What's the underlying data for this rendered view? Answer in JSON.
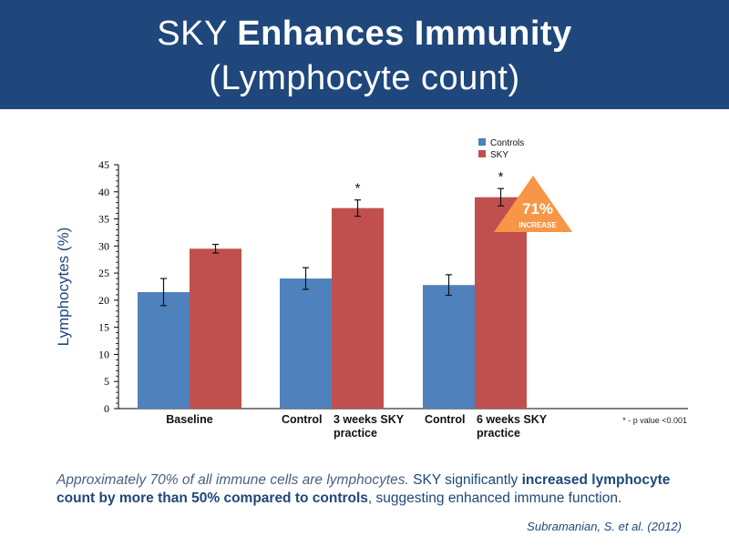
{
  "header": {
    "title_part1": "SKY",
    "title_part2": "Enhances Immunity",
    "title_line2": "(Lymphocyte count)"
  },
  "colors": {
    "banner": "#1f477b",
    "controls": "#4f81bd",
    "sky": "#c0504d",
    "badge": "#f79646"
  },
  "chart_data": {
    "type": "bar",
    "ylabel": "Lymphocytes (%)",
    "ylim": [
      0,
      45
    ],
    "yticks": [
      0,
      5,
      10,
      15,
      20,
      25,
      30,
      35,
      40,
      45
    ],
    "groups": [
      {
        "name": "Baseline",
        "labels": [
          "Baseline"
        ]
      },
      {
        "name": "3 weeks",
        "labels": [
          "Control",
          "3 weeks SKY\npractice"
        ]
      },
      {
        "name": "6 weeks",
        "labels": [
          "Control",
          "6 weeks SKY\npractice"
        ]
      }
    ],
    "series": [
      {
        "name": "Controls",
        "values": [
          21.5,
          24,
          22.8
        ],
        "errors": [
          2.5,
          2,
          1.9
        ]
      },
      {
        "name": "SKY",
        "values": [
          29.5,
          37,
          39
        ],
        "errors": [
          0.8,
          1.5,
          1.6
        ]
      }
    ],
    "significance": [
      "",
      "*",
      "*"
    ],
    "legend_position": "top-right",
    "badge": {
      "value": "71%",
      "text": "INCREASE"
    },
    "note": "* - p value <0.001"
  },
  "footer": {
    "italic_lead": "Approximately 70% of all immune cells are lymphocytes.",
    "normal1": " SKY significantly ",
    "bold1": "increased lymphocyte count by more than 50% compared to controls",
    "normal2": ",  suggesting enhanced immune function.",
    "citation": "Subramanian, S. et al. (2012)"
  }
}
